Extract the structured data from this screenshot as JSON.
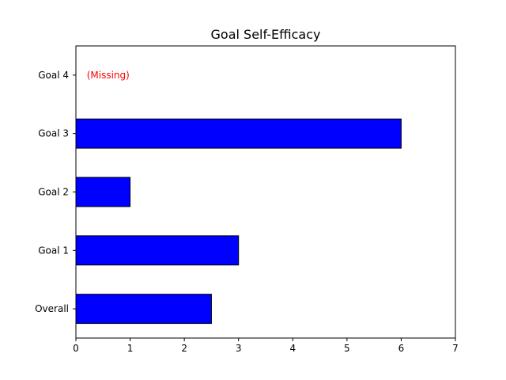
{
  "chart_data": {
    "type": "bar",
    "orientation": "horizontal",
    "title": "Goal Self-Efficacy",
    "xlabel": "",
    "ylabel": "",
    "categories": [
      "Overall",
      "Goal 1",
      "Goal 2",
      "Goal 3",
      "Goal 4"
    ],
    "values": [
      2.5,
      3,
      1,
      6,
      null
    ],
    "xlim": [
      0,
      7
    ],
    "xticks": [
      0,
      1,
      2,
      3,
      4,
      5,
      6,
      7
    ],
    "grid": false,
    "bar_color": "#0000ff",
    "bar_edge_color": "#000000",
    "annotations": [
      {
        "category": "Goal 4",
        "text": "(Missing)",
        "color": "#ff0000"
      }
    ]
  }
}
